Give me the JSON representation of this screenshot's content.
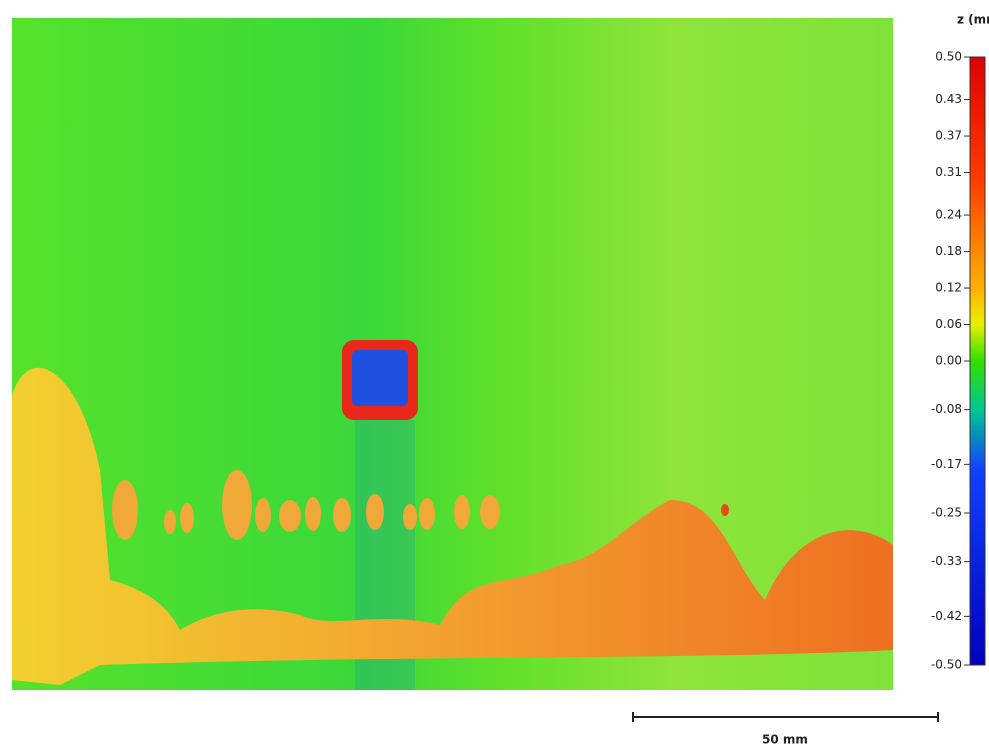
{
  "chart_data": {
    "type": "heatmap",
    "colorbar": {
      "title": "z (mm)",
      "lim": [
        -0.5,
        0.5
      ],
      "ticks": [
        {
          "value": 0.5,
          "label": "0.50"
        },
        {
          "value": 0.43,
          "label": "0.43"
        },
        {
          "value": 0.37,
          "label": "0.37"
        },
        {
          "value": 0.31,
          "label": "0.31"
        },
        {
          "value": 0.24,
          "label": "0.24"
        },
        {
          "value": 0.18,
          "label": "0.18"
        },
        {
          "value": 0.12,
          "label": "0.12"
        },
        {
          "value": 0.06,
          "label": "0.06"
        },
        {
          "value": 0,
          "label": "0.00"
        },
        {
          "value": -0.08,
          "label": "-0.08"
        },
        {
          "value": -0.17,
          "label": "-0.17"
        },
        {
          "value": -0.25,
          "label": "-0.25"
        },
        {
          "value": -0.33,
          "label": "-0.33"
        },
        {
          "value": -0.42,
          "label": "-0.42"
        },
        {
          "value": -0.5,
          "label": "-0.50"
        }
      ]
    },
    "scale_bar": "50 mm"
  }
}
